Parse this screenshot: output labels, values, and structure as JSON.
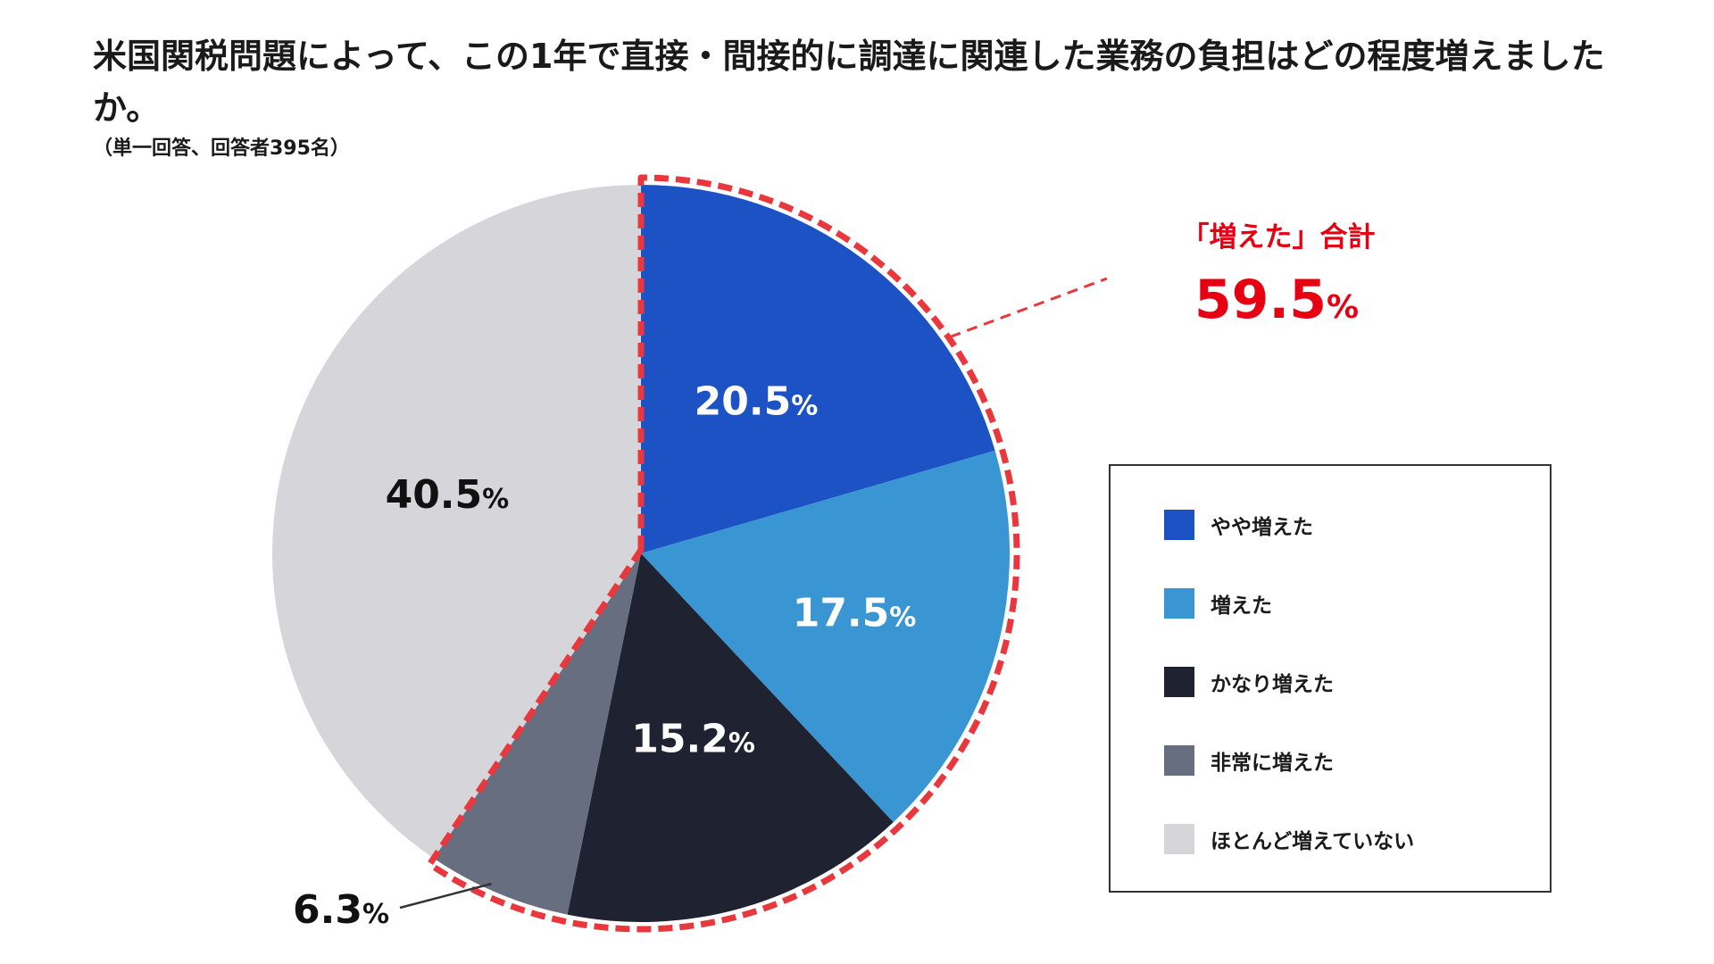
{
  "title": "米国関税問題によって、この1年で直接・間接的に調達に関連した業務の負担はどの程度増えましたか。",
  "subtitle": "（単一回答、回答者395名）",
  "callout": {
    "label": "「増えた」合計",
    "value": "59.5",
    "unit": "%"
  },
  "colors": {
    "accent": "#e8383d",
    "callout_text": "#e60012"
  },
  "chart_data": {
    "type": "pie",
    "title": "米国関税問題によって、この1年で直接・間接的に調達に関連した業務の負担はどの程度増えましたか。",
    "unit": "%",
    "start": "12 o'clock, clockwise",
    "slices": [
      {
        "label": "やや増えた",
        "value": 20.5,
        "color": "#1c52c4",
        "text_color": "#ffffff"
      },
      {
        "label": "増えた",
        "value": 17.5,
        "color": "#3996d3",
        "text_color": "#ffffff"
      },
      {
        "label": "かなり増えた",
        "value": 15.2,
        "color": "#1f2230",
        "text_color": "#ffffff"
      },
      {
        "label": "非常に増えた",
        "value": 6.3,
        "color": "#666e80",
        "text_color": "#111111"
      },
      {
        "label": "ほとんど増えていない",
        "value": 40.5,
        "color": "#d6d6da",
        "text_color": "#111111"
      }
    ],
    "highlight": {
      "slices": [
        "やや増えた",
        "増えた",
        "かなり増えた",
        "非常に増えた"
      ],
      "total": 59.5
    }
  }
}
